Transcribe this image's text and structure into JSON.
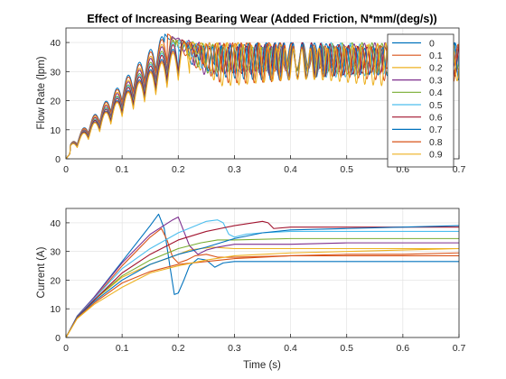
{
  "chart_data": [
    {
      "type": "line",
      "title": "Effect of Increasing Bearing Wear (Added Friction, N*mm/(deg/s))",
      "xlabel": "",
      "ylabel": "Flow Rate (lpm)",
      "xlim": [
        0,
        0.7
      ],
      "ylim": [
        0,
        45
      ],
      "xticks": [
        0,
        0.1,
        0.2,
        0.3,
        0.4,
        0.5,
        0.6,
        0.7
      ],
      "xtick_labels": [
        "0",
        "0.1",
        "0.2",
        "0.3",
        "0.4",
        "0.5",
        "0.6",
        "0.7"
      ],
      "yticks": [
        0,
        10,
        20,
        30,
        40
      ],
      "ytick_labels": [
        "0",
        "10",
        "20",
        "30",
        "40"
      ],
      "grid": true,
      "legend_position": "top-right",
      "series": [
        {
          "name": "0",
          "color": "#0072BD",
          "peak_t": 0.175,
          "peak_v": 43,
          "steady_lo": 31,
          "steady_hi": 40
        },
        {
          "name": "0.1",
          "color": "#D95319",
          "peak_t": 0.18,
          "peak_v": 43,
          "steady_lo": 30,
          "steady_hi": 40
        },
        {
          "name": "0.2",
          "color": "#EDB120",
          "peak_t": 0.185,
          "peak_v": 42,
          "steady_lo": 30,
          "steady_hi": 40
        },
        {
          "name": "0.3",
          "color": "#7E2F8E",
          "peak_t": 0.19,
          "peak_v": 42,
          "steady_lo": 29,
          "steady_hi": 40
        },
        {
          "name": "0.4",
          "color": "#77AC30",
          "peak_t": 0.195,
          "peak_v": 41,
          "steady_lo": 29,
          "steady_hi": 40
        },
        {
          "name": "0.5",
          "color": "#4DBEEE",
          "peak_t": 0.2,
          "peak_v": 41,
          "steady_lo": 28,
          "steady_hi": 40
        },
        {
          "name": "0.6",
          "color": "#A2142F",
          "peak_t": 0.205,
          "peak_v": 41,
          "steady_lo": 28,
          "steady_hi": 40
        },
        {
          "name": "0.7",
          "color": "#0072BD",
          "peak_t": 0.21,
          "peak_v": 40,
          "steady_lo": 27,
          "steady_hi": 40
        },
        {
          "name": "0.8",
          "color": "#D95319",
          "peak_t": 0.215,
          "peak_v": 40,
          "steady_lo": 26,
          "steady_hi": 40
        },
        {
          "name": "0.9",
          "color": "#EDB120",
          "peak_t": 0.22,
          "peak_v": 40,
          "steady_lo": 25,
          "steady_hi": 40
        }
      ]
    },
    {
      "type": "line",
      "title": "",
      "xlabel": "Time (s)",
      "ylabel": "Current (A)",
      "xlim": [
        0,
        0.7
      ],
      "ylim": [
        0,
        45
      ],
      "xticks": [
        0,
        0.1,
        0.2,
        0.3,
        0.4,
        0.5,
        0.6,
        0.7
      ],
      "xtick_labels": [
        "0",
        "0.1",
        "0.2",
        "0.3",
        "0.4",
        "0.5",
        "0.6",
        "0.7"
      ],
      "yticks": [
        0,
        10,
        20,
        30,
        40
      ],
      "ytick_labels": [
        "0",
        "10",
        "20",
        "30",
        "40"
      ],
      "grid": true,
      "series": [
        {
          "name": "0",
          "color": "#0072BD",
          "points": [
            [
              0,
              0
            ],
            [
              0.02,
              7.5
            ],
            [
              0.05,
              14
            ],
            [
              0.1,
              26.5
            ],
            [
              0.15,
              39
            ],
            [
              0.165,
              43
            ],
            [
              0.175,
              38
            ],
            [
              0.185,
              25
            ],
            [
              0.193,
              15
            ],
            [
              0.2,
              15.5
            ],
            [
              0.21,
              20
            ],
            [
              0.22,
              25
            ],
            [
              0.235,
              27.5
            ],
            [
              0.25,
              27
            ],
            [
              0.265,
              24.5
            ],
            [
              0.28,
              26
            ],
            [
              0.3,
              26.5
            ],
            [
              0.4,
              26.5
            ],
            [
              0.5,
              26.5
            ],
            [
              0.6,
              26.5
            ],
            [
              0.7,
              26.5
            ]
          ]
        },
        {
          "name": "0.1",
          "color": "#D95319",
          "points": [
            [
              0,
              0
            ],
            [
              0.02,
              7.3
            ],
            [
              0.05,
              13.5
            ],
            [
              0.1,
              25
            ],
            [
              0.15,
              35
            ],
            [
              0.17,
              38
            ],
            [
              0.18,
              34
            ],
            [
              0.19,
              28
            ],
            [
              0.2,
              26
            ],
            [
              0.215,
              27
            ],
            [
              0.23,
              28.5
            ],
            [
              0.25,
              29
            ],
            [
              0.27,
              28
            ],
            [
              0.3,
              28
            ],
            [
              0.4,
              28.5
            ],
            [
              0.5,
              28.5
            ],
            [
              0.6,
              28.5
            ],
            [
              0.7,
              28.5
            ]
          ]
        },
        {
          "name": "0.2",
          "color": "#EDB120",
          "points": [
            [
              0,
              0
            ],
            [
              0.02,
              7
            ],
            [
              0.05,
              13
            ],
            [
              0.1,
              21
            ],
            [
              0.15,
              25.5
            ],
            [
              0.18,
              27.5
            ],
            [
              0.2,
              29
            ],
            [
              0.22,
              30.5
            ],
            [
              0.26,
              31.5
            ],
            [
              0.3,
              31
            ],
            [
              0.4,
              31
            ],
            [
              0.5,
              31
            ],
            [
              0.6,
              31
            ],
            [
              0.7,
              31
            ]
          ]
        },
        {
          "name": "0.3",
          "color": "#7E2F8E",
          "points": [
            [
              0,
              0
            ],
            [
              0.02,
              7.4
            ],
            [
              0.05,
              14
            ],
            [
              0.1,
              26
            ],
            [
              0.15,
              36
            ],
            [
              0.19,
              41
            ],
            [
              0.2,
              42
            ],
            [
              0.21,
              37
            ],
            [
              0.22,
              32
            ],
            [
              0.235,
              29
            ],
            [
              0.25,
              30.5
            ],
            [
              0.27,
              31.5
            ],
            [
              0.3,
              32.5
            ],
            [
              0.4,
              32.5
            ],
            [
              0.5,
              33
            ],
            [
              0.6,
              33
            ],
            [
              0.7,
              33
            ]
          ]
        },
        {
          "name": "0.4",
          "color": "#77AC30",
          "points": [
            [
              0,
              0
            ],
            [
              0.02,
              7.2
            ],
            [
              0.05,
              13
            ],
            [
              0.1,
              21.5
            ],
            [
              0.15,
              27
            ],
            [
              0.2,
              31
            ],
            [
              0.24,
              33
            ],
            [
              0.27,
              34
            ],
            [
              0.3,
              34
            ],
            [
              0.4,
              34.5
            ],
            [
              0.5,
              34.5
            ],
            [
              0.6,
              34.5
            ],
            [
              0.7,
              34.5
            ]
          ]
        },
        {
          "name": "0.5",
          "color": "#4DBEEE",
          "points": [
            [
              0,
              0
            ],
            [
              0.02,
              7.3
            ],
            [
              0.05,
              13.5
            ],
            [
              0.1,
              24
            ],
            [
              0.15,
              31
            ],
            [
              0.2,
              36.5
            ],
            [
              0.25,
              40.5
            ],
            [
              0.27,
              41
            ],
            [
              0.28,
              40
            ],
            [
              0.29,
              36
            ],
            [
              0.3,
              35
            ],
            [
              0.32,
              36
            ],
            [
              0.35,
              36.5
            ],
            [
              0.4,
              37
            ],
            [
              0.5,
              37
            ],
            [
              0.6,
              37
            ],
            [
              0.7,
              37
            ]
          ]
        },
        {
          "name": "0.6",
          "color": "#A2142F",
          "points": [
            [
              0,
              0
            ],
            [
              0.02,
              7.2
            ],
            [
              0.05,
              13
            ],
            [
              0.1,
              22.5
            ],
            [
              0.15,
              29
            ],
            [
              0.2,
              34
            ],
            [
              0.25,
              37
            ],
            [
              0.3,
              39
            ],
            [
              0.35,
              40.5
            ],
            [
              0.36,
              40
            ],
            [
              0.37,
              38
            ],
            [
              0.4,
              38.5
            ],
            [
              0.5,
              38.5
            ],
            [
              0.6,
              38.5
            ],
            [
              0.7,
              38.5
            ]
          ]
        },
        {
          "name": "0.7",
          "color": "#0072BD",
          "points": [
            [
              0,
              0
            ],
            [
              0.02,
              7
            ],
            [
              0.05,
              12.5
            ],
            [
              0.1,
              20
            ],
            [
              0.15,
              25.5
            ],
            [
              0.2,
              29
            ],
            [
              0.25,
              31.5
            ],
            [
              0.3,
              34.5
            ],
            [
              0.35,
              36.5
            ],
            [
              0.4,
              37.5
            ],
            [
              0.5,
              38
            ],
            [
              0.6,
              38.5
            ],
            [
              0.7,
              39
            ]
          ]
        },
        {
          "name": "0.8",
          "color": "#D95319",
          "points": [
            [
              0,
              0
            ],
            [
              0.02,
              6.8
            ],
            [
              0.05,
              12
            ],
            [
              0.1,
              19
            ],
            [
              0.15,
              23
            ],
            [
              0.2,
              25.5
            ],
            [
              0.25,
              26.5
            ],
            [
              0.3,
              27.5
            ],
            [
              0.4,
              28.5
            ],
            [
              0.5,
              29
            ],
            [
              0.6,
              29
            ],
            [
              0.7,
              29.5
            ]
          ]
        },
        {
          "name": "0.9",
          "color": "#EDB120",
          "points": [
            [
              0,
              0
            ],
            [
              0.02,
              6.6
            ],
            [
              0.05,
              11.5
            ],
            [
              0.1,
              17.5
            ],
            [
              0.15,
              22.5
            ],
            [
              0.2,
              25
            ],
            [
              0.25,
              27
            ],
            [
              0.3,
              28.5
            ],
            [
              0.4,
              29.5
            ],
            [
              0.5,
              30
            ],
            [
              0.6,
              30.5
            ],
            [
              0.7,
              31
            ]
          ]
        }
      ]
    }
  ]
}
